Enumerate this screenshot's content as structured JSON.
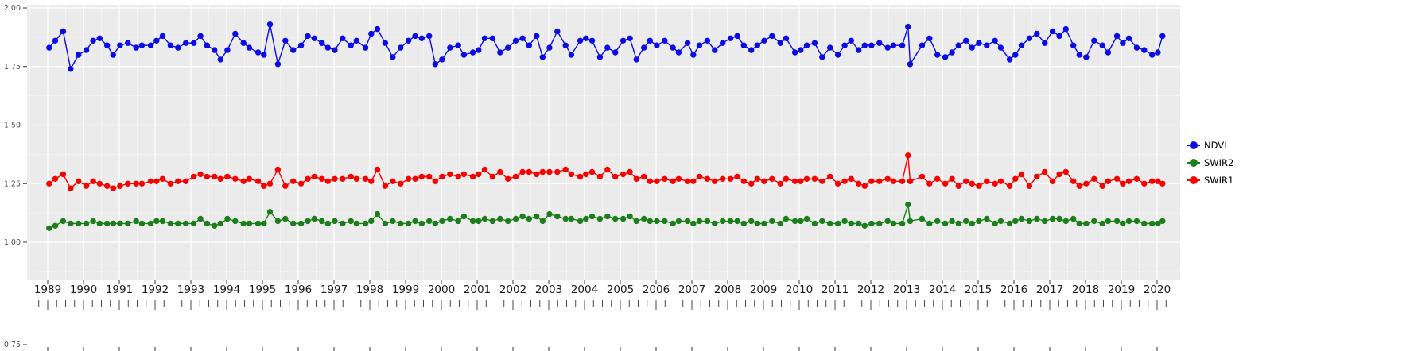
{
  "legend": {
    "position": "right",
    "items": [
      {
        "label": "NDVI",
        "color": "#0b0be6"
      },
      {
        "label": "SWIR2",
        "color": "#1b7e1b"
      },
      {
        "label": "SWIR1",
        "color": "#f70000"
      }
    ]
  },
  "chart_data": {
    "type": "line",
    "title": "",
    "xlabel": "",
    "ylabel": "",
    "legend_position": "right",
    "grid": "major white gridlines on gray panel, minor lighter gridlines",
    "panel_color": "#EBEBEB",
    "grid_major_color": "#FFFFFF",
    "grid_minor_color": "#F6F6F6",
    "xlim": [
      1988.4,
      2020.6
    ],
    "ylim": [
      0.84,
      2.01
    ],
    "x_tick_labels": [
      "1989",
      "1990",
      "1991",
      "1992",
      "1993",
      "1994",
      "1995",
      "1996",
      "1997",
      "1998",
      "1999",
      "2000",
      "2001",
      "2002",
      "2003",
      "2004",
      "2005",
      "2006",
      "2007",
      "2008",
      "2009",
      "2010",
      "2011",
      "2012",
      "2013",
      "2014",
      "2015",
      "2016",
      "2017",
      "2018",
      "2019",
      "2020"
    ],
    "y_ticks": [
      2.0,
      1.75,
      1.5,
      1.25,
      1.0
    ],
    "y_tick_labels": [
      "2.00",
      "1.75",
      "1.50",
      "1.25",
      "1.00"
    ],
    "bottom_cropped_label": "0.75",
    "x": [
      1989.04,
      1989.21,
      1989.43,
      1989.64,
      1989.86,
      1990.08,
      1990.27,
      1990.45,
      1990.66,
      1990.83,
      1991.02,
      1991.24,
      1991.47,
      1991.63,
      1991.88,
      1992.04,
      1992.21,
      1992.43,
      1992.64,
      1992.86,
      1993.08,
      1993.27,
      1993.45,
      1993.66,
      1993.83,
      1994.02,
      1994.24,
      1994.47,
      1994.63,
      1994.88,
      1995.04,
      1995.21,
      1995.43,
      1995.64,
      1995.86,
      1996.08,
      1996.27,
      1996.45,
      1996.66,
      1996.83,
      1997.02,
      1997.24,
      1997.47,
      1997.63,
      1997.88,
      1998.04,
      1998.21,
      1998.43,
      1998.64,
      1998.86,
      1999.08,
      1999.27,
      1999.45,
      1999.66,
      1999.83,
      2000.02,
      2000.24,
      2000.47,
      2000.63,
      2000.88,
      2001.04,
      2001.21,
      2001.43,
      2001.64,
      2001.86,
      2002.08,
      2002.27,
      2002.45,
      2002.66,
      2002.83,
      2003.02,
      2003.24,
      2003.47,
      2003.63,
      2003.88,
      2004.04,
      2004.21,
      2004.43,
      2004.64,
      2004.86,
      2005.08,
      2005.27,
      2005.45,
      2005.66,
      2005.83,
      2006.02,
      2006.24,
      2006.47,
      2006.63,
      2006.88,
      2007.04,
      2007.21,
      2007.43,
      2007.64,
      2007.86,
      2008.08,
      2008.27,
      2008.45,
      2008.66,
      2008.83,
      2009.02,
      2009.24,
      2009.47,
      2009.63,
      2009.88,
      2010.04,
      2010.21,
      2010.43,
      2010.64,
      2010.86,
      2011.08,
      2011.27,
      2011.45,
      2011.66,
      2011.83,
      2012.02,
      2012.24,
      2012.47,
      2012.63,
      2012.88,
      2013.04,
      2013.1,
      2013.43,
      2013.64,
      2013.86,
      2014.08,
      2014.27,
      2014.45,
      2014.66,
      2014.83,
      2015.02,
      2015.24,
      2015.47,
      2015.63,
      2015.88,
      2016.04,
      2016.21,
      2016.43,
      2016.64,
      2016.86,
      2017.08,
      2017.27,
      2017.45,
      2017.66,
      2017.83,
      2018.02,
      2018.24,
      2018.47,
      2018.63,
      2018.88,
      2019.04,
      2019.21,
      2019.43,
      2019.64,
      2019.86,
      2020.02,
      2020.15
    ],
    "series": [
      {
        "name": "NDVI",
        "color": "#0b0be6",
        "values": [
          1.83,
          1.86,
          1.9,
          1.74,
          1.8,
          1.82,
          1.86,
          1.87,
          1.84,
          1.8,
          1.84,
          1.85,
          1.83,
          1.84,
          1.84,
          1.86,
          1.88,
          1.84,
          1.83,
          1.85,
          1.85,
          1.88,
          1.84,
          1.82,
          1.78,
          1.82,
          1.89,
          1.85,
          1.83,
          1.81,
          1.8,
          1.93,
          1.76,
          1.86,
          1.82,
          1.84,
          1.88,
          1.87,
          1.85,
          1.83,
          1.82,
          1.87,
          1.84,
          1.86,
          1.83,
          1.89,
          1.91,
          1.85,
          1.79,
          1.83,
          1.86,
          1.88,
          1.87,
          1.88,
          1.76,
          1.78,
          1.83,
          1.84,
          1.8,
          1.81,
          1.82,
          1.87,
          1.87,
          1.81,
          1.83,
          1.86,
          1.87,
          1.84,
          1.88,
          1.79,
          1.83,
          1.9,
          1.84,
          1.8,
          1.86,
          1.87,
          1.86,
          1.79,
          1.83,
          1.81,
          1.86,
          1.87,
          1.78,
          1.83,
          1.86,
          1.84,
          1.86,
          1.83,
          1.81,
          1.85,
          1.8,
          1.84,
          1.86,
          1.82,
          1.85,
          1.87,
          1.88,
          1.84,
          1.82,
          1.84,
          1.86,
          1.88,
          1.85,
          1.87,
          1.81,
          1.82,
          1.84,
          1.85,
          1.79,
          1.83,
          1.8,
          1.84,
          1.86,
          1.82,
          1.84,
          1.84,
          1.85,
          1.83,
          1.84,
          1.84,
          1.92,
          1.76,
          1.84,
          1.87,
          1.8,
          1.79,
          1.81,
          1.84,
          1.86,
          1.83,
          1.85,
          1.84,
          1.86,
          1.83,
          1.78,
          1.8,
          1.84,
          1.87,
          1.89,
          1.85,
          1.9,
          1.88,
          1.91,
          1.84,
          1.8,
          1.79,
          1.86,
          1.84,
          1.81,
          1.88,
          1.85,
          1.87,
          1.83,
          1.82,
          1.8,
          1.81,
          1.88
        ]
      },
      {
        "name": "SWIR2",
        "color": "#1b7e1b",
        "values": [
          1.06,
          1.07,
          1.09,
          1.08,
          1.08,
          1.08,
          1.09,
          1.08,
          1.08,
          1.08,
          1.08,
          1.08,
          1.09,
          1.08,
          1.08,
          1.09,
          1.09,
          1.08,
          1.08,
          1.08,
          1.08,
          1.1,
          1.08,
          1.07,
          1.08,
          1.1,
          1.09,
          1.08,
          1.08,
          1.08,
          1.08,
          1.13,
          1.09,
          1.1,
          1.08,
          1.08,
          1.09,
          1.1,
          1.09,
          1.08,
          1.09,
          1.08,
          1.09,
          1.08,
          1.08,
          1.09,
          1.12,
          1.08,
          1.09,
          1.08,
          1.08,
          1.09,
          1.08,
          1.09,
          1.08,
          1.09,
          1.1,
          1.09,
          1.11,
          1.09,
          1.09,
          1.1,
          1.09,
          1.1,
          1.09,
          1.1,
          1.11,
          1.1,
          1.11,
          1.09,
          1.12,
          1.11,
          1.1,
          1.1,
          1.09,
          1.1,
          1.11,
          1.1,
          1.11,
          1.1,
          1.1,
          1.11,
          1.09,
          1.1,
          1.09,
          1.09,
          1.09,
          1.08,
          1.09,
          1.09,
          1.08,
          1.09,
          1.09,
          1.08,
          1.09,
          1.09,
          1.09,
          1.08,
          1.09,
          1.08,
          1.08,
          1.09,
          1.08,
          1.1,
          1.09,
          1.09,
          1.1,
          1.08,
          1.09,
          1.08,
          1.08,
          1.09,
          1.08,
          1.08,
          1.07,
          1.08,
          1.08,
          1.09,
          1.08,
          1.08,
          1.16,
          1.09,
          1.1,
          1.08,
          1.09,
          1.08,
          1.09,
          1.08,
          1.09,
          1.08,
          1.09,
          1.1,
          1.08,
          1.09,
          1.08,
          1.09,
          1.1,
          1.09,
          1.1,
          1.09,
          1.1,
          1.1,
          1.09,
          1.1,
          1.08,
          1.08,
          1.09,
          1.08,
          1.09,
          1.09,
          1.08,
          1.09,
          1.09,
          1.08,
          1.08,
          1.08,
          1.09
        ]
      },
      {
        "name": "SWIR1",
        "color": "#f70000",
        "values": [
          1.25,
          1.27,
          1.29,
          1.23,
          1.26,
          1.24,
          1.26,
          1.25,
          1.24,
          1.23,
          1.24,
          1.25,
          1.25,
          1.25,
          1.26,
          1.26,
          1.27,
          1.25,
          1.26,
          1.26,
          1.28,
          1.29,
          1.28,
          1.28,
          1.27,
          1.28,
          1.27,
          1.26,
          1.27,
          1.26,
          1.24,
          1.25,
          1.31,
          1.24,
          1.26,
          1.25,
          1.27,
          1.28,
          1.27,
          1.26,
          1.27,
          1.27,
          1.28,
          1.27,
          1.27,
          1.26,
          1.31,
          1.24,
          1.26,
          1.25,
          1.27,
          1.27,
          1.28,
          1.28,
          1.26,
          1.28,
          1.29,
          1.28,
          1.29,
          1.28,
          1.29,
          1.31,
          1.28,
          1.3,
          1.27,
          1.28,
          1.3,
          1.3,
          1.29,
          1.3,
          1.3,
          1.3,
          1.31,
          1.29,
          1.28,
          1.29,
          1.3,
          1.28,
          1.31,
          1.28,
          1.29,
          1.3,
          1.27,
          1.28,
          1.26,
          1.26,
          1.27,
          1.26,
          1.27,
          1.26,
          1.26,
          1.28,
          1.27,
          1.26,
          1.27,
          1.27,
          1.28,
          1.26,
          1.25,
          1.27,
          1.26,
          1.27,
          1.25,
          1.27,
          1.26,
          1.26,
          1.27,
          1.27,
          1.26,
          1.28,
          1.25,
          1.26,
          1.27,
          1.25,
          1.24,
          1.26,
          1.26,
          1.27,
          1.26,
          1.26,
          1.37,
          1.26,
          1.28,
          1.25,
          1.27,
          1.25,
          1.27,
          1.24,
          1.26,
          1.25,
          1.24,
          1.26,
          1.25,
          1.26,
          1.24,
          1.27,
          1.29,
          1.24,
          1.28,
          1.3,
          1.26,
          1.29,
          1.3,
          1.26,
          1.24,
          1.25,
          1.27,
          1.24,
          1.26,
          1.27,
          1.25,
          1.26,
          1.27,
          1.25,
          1.26,
          1.26,
          1.25
        ]
      }
    ]
  }
}
